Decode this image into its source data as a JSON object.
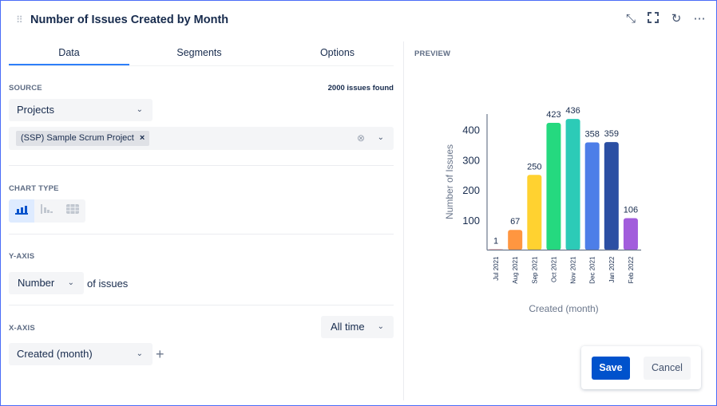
{
  "header": {
    "title": "Number of Issues Created by Month",
    "icons": [
      "drag-handle-icon",
      "collapse-icon",
      "fullscreen-icon",
      "refresh-icon",
      "more-icon"
    ]
  },
  "tabs": [
    {
      "label": "Data",
      "active": true
    },
    {
      "label": "Segments"
    },
    {
      "label": "Options"
    }
  ],
  "source": {
    "label": "SOURCE",
    "count": "2000 issues found",
    "select": "Projects",
    "tag": "(SSP) Sample Scrum Project"
  },
  "chart_type": {
    "label": "CHART TYPE",
    "options": [
      "bar-chart",
      "stacked-bar-chart",
      "table"
    ],
    "selected": "bar-chart"
  },
  "y_axis": {
    "label": "Y-AXIS",
    "select": "Number",
    "suffix": "of issues"
  },
  "x_axis": {
    "label": "X-AXIS",
    "range": "All time",
    "select": "Created (month)"
  },
  "preview": {
    "label": "PREVIEW"
  },
  "actions": {
    "save": "Save",
    "cancel": "Cancel"
  },
  "chart_data": {
    "type": "bar",
    "categories": [
      "Jul 2021",
      "Aug 2021",
      "Sep 2021",
      "Oct 2021",
      "Nov 2021",
      "Dec 2021",
      "Jan 2022",
      "Feb 2022"
    ],
    "values": [
      1,
      67,
      250,
      423,
      436,
      358,
      359,
      106
    ],
    "colors": [
      "#f26b6b",
      "#ff9640",
      "#ffd230",
      "#25d97f",
      "#2ccbb7",
      "#4d7ee8",
      "#2b4fa3",
      "#a25ddc"
    ],
    "xlabel": "Created (month)",
    "ylabel": "Number of Issues",
    "yticks": [
      100,
      200,
      300,
      400
    ],
    "ylim": [
      0,
      450
    ],
    "grid": false,
    "legend": "none"
  }
}
